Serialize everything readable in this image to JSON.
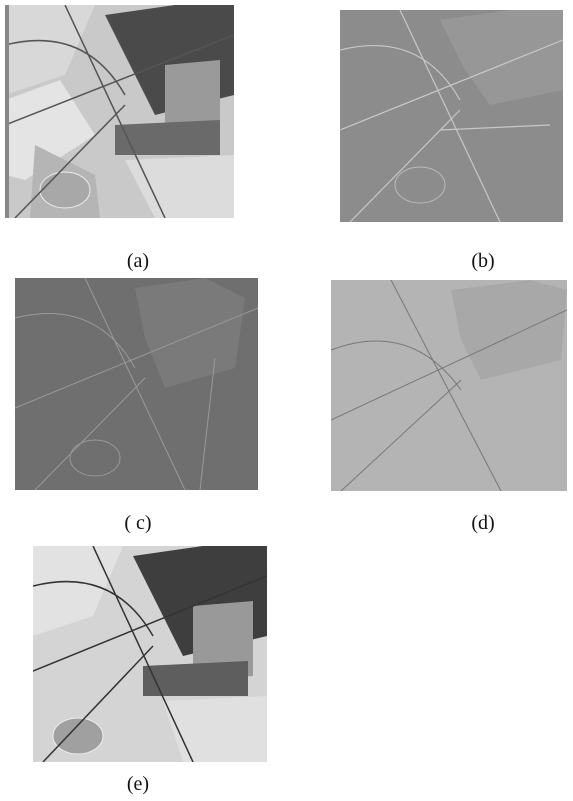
{
  "figure": {
    "panels": [
      {
        "caption": "(a)"
      },
      {
        "caption": "(b)"
      },
      {
        "caption": "( c)"
      },
      {
        "caption": "(d)"
      },
      {
        "caption": "(e)"
      }
    ]
  }
}
